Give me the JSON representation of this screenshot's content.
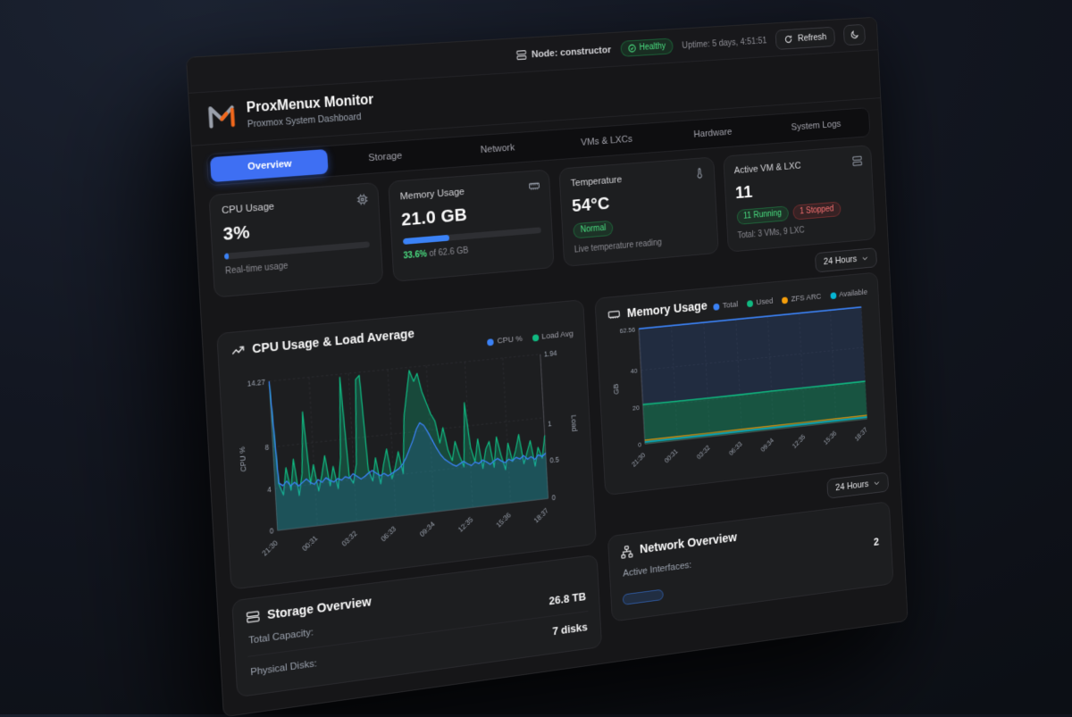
{
  "topbar": {
    "node_label": "Node: constructor",
    "health_badge": "Healthy",
    "uptime": "Uptime: 5 days, 4:51:51",
    "refresh_label": "Refresh"
  },
  "header": {
    "title": "ProxMenux Monitor",
    "subtitle": "Proxmox System Dashboard"
  },
  "tabs": [
    {
      "label": "Overview",
      "active": true
    },
    {
      "label": "Storage",
      "active": false
    },
    {
      "label": "Network",
      "active": false
    },
    {
      "label": "VMs & LXCs",
      "active": false
    },
    {
      "label": "Hardware",
      "active": false
    },
    {
      "label": "System Logs",
      "active": false
    }
  ],
  "stat_cards": {
    "cpu": {
      "title": "CPU Usage",
      "value": "3%",
      "percent": 3,
      "caption": "Real-time usage"
    },
    "memory": {
      "title": "Memory Usage",
      "value": "21.0 GB",
      "percent": 33.6,
      "caption_percent": "33.6%",
      "caption_rest": " of 62.6 GB"
    },
    "temperature": {
      "title": "Temperature",
      "value": "54°C",
      "status": "Normal",
      "caption": "Live temperature reading"
    },
    "vms": {
      "title": "Active VM & LXC",
      "value": "11",
      "running": "11 Running",
      "stopped": "1 Stopped",
      "caption": "Total: 3 VMs, 9 LXC"
    }
  },
  "time_range": {
    "label": "24 Hours"
  },
  "storage": {
    "title": "Storage Overview",
    "rows": [
      {
        "label": "Total Capacity:",
        "value": "26.8 TB"
      },
      {
        "label": "Physical Disks:",
        "value": "7 disks"
      }
    ]
  },
  "network": {
    "title": "Network Overview",
    "rows": [
      {
        "label": "Active Interfaces:",
        "value": "2"
      }
    ],
    "interface_chip": ""
  },
  "colors": {
    "accent_blue": "#3b82f6",
    "green": "#22c55e",
    "red": "#ef4444",
    "orange": "#f59e0b",
    "cyan": "#06b6d4",
    "teal": "#10b981"
  },
  "chart_data": [
    {
      "type": "area",
      "title": "CPU Usage & Load Average",
      "x_ticks": [
        "21:30",
        "00:31",
        "03:32",
        "06:33",
        "09:34",
        "12:35",
        "15:36",
        "18:37"
      ],
      "y_left": {
        "label": "CPU %",
        "ticks": [
          0,
          4,
          8,
          14.27
        ],
        "max": 14.27
      },
      "y_right": {
        "label": "Load",
        "ticks": [
          0,
          0.5,
          1,
          1.94
        ],
        "max": 1.94
      },
      "series": [
        {
          "name": "CPU %",
          "color": "#3b82f6",
          "axis": "left",
          "fill": "rgba(59,130,246,0.16)",
          "values": [
            14.27,
            4.5,
            4.2,
            4.6,
            4.1,
            4.4,
            4.0,
            4.3,
            4.6,
            4.2,
            4.0,
            4.4,
            4.1,
            4.5,
            4.2,
            4.0,
            4.3,
            4.1,
            4.4,
            4.2,
            4.6,
            4.3,
            4.0,
            4.2,
            4.5,
            4.7,
            4.4,
            4.1,
            4.3,
            4.0,
            4.2,
            4.4,
            4.6,
            5.0,
            5.6,
            6.4,
            7.2,
            8.2,
            8.8,
            8.5,
            7.8,
            7.0,
            6.2,
            5.5,
            5.0,
            4.7,
            4.4,
            4.2,
            4.4,
            4.6,
            4.3,
            4.1,
            4.4,
            4.2,
            4.5,
            4.3,
            4.0,
            4.3,
            4.5,
            4.2,
            4.0,
            4.3,
            4.1,
            4.4,
            4.2,
            4.5,
            4.1,
            4.3,
            4.0,
            4.4,
            4.2,
            4.5
          ]
        },
        {
          "name": "Load Avg",
          "color": "#10b981",
          "axis": "right",
          "fill": "rgba(16,185,129,0.28)",
          "values": [
            1.9,
            0.6,
            0.45,
            0.8,
            0.5,
            0.9,
            0.42,
            0.7,
            1.5,
            0.55,
            0.8,
            0.45,
            0.65,
            0.9,
            0.5,
            0.75,
            0.45,
            0.85,
            1.9,
            0.6,
            0.5,
            0.75,
            1.85,
            1.9,
            0.65,
            0.5,
            0.8,
            0.45,
            0.7,
            0.9,
            0.5,
            0.65,
            0.85,
            0.55,
            1.3,
            1.6,
            1.9,
            1.75,
            1.85,
            1.6,
            1.45,
            1.3,
            1.2,
            0.9,
            1.1,
            0.8,
            0.65,
            0.9,
            0.7,
            0.55,
            1.4,
            0.8,
            0.6,
            0.9,
            0.5,
            0.75,
            0.85,
            0.5,
            0.9,
            0.65,
            0.45,
            0.8,
            0.55,
            0.7,
            0.9,
            0.5,
            0.65,
            0.8,
            0.45,
            0.7,
            0.55,
            0.85
          ]
        }
      ]
    },
    {
      "type": "area",
      "title": "Memory Usage",
      "x_ticks": [
        "21:30",
        "00:31",
        "03:32",
        "06:33",
        "09:34",
        "12:35",
        "15:36",
        "18:37"
      ],
      "y_left": {
        "label": "GB",
        "ticks": [
          0,
          20,
          40,
          62.56
        ],
        "max": 62.56
      },
      "series": [
        {
          "name": "Total",
          "color": "#3b82f6",
          "values": [
            62.56,
            62.56,
            62.56,
            62.56,
            62.56,
            62.56,
            62.56,
            62.56
          ]
        },
        {
          "name": "Used",
          "color": "#10b981",
          "values": [
            21.4,
            21.2,
            21.1,
            21.0,
            21.2,
            21.1,
            21.0,
            21.0
          ]
        },
        {
          "name": "ZFS ARC",
          "color": "#f59e0b",
          "values": [
            2.0,
            2.0,
            1.9,
            2.0,
            2.0,
            1.9,
            2.0,
            2.0
          ]
        },
        {
          "name": "Available",
          "color": "#06b6d4",
          "values": [
            1.0,
            1.0,
            1.0,
            1.0,
            1.0,
            1.0,
            1.0,
            1.0
          ]
        }
      ]
    }
  ]
}
